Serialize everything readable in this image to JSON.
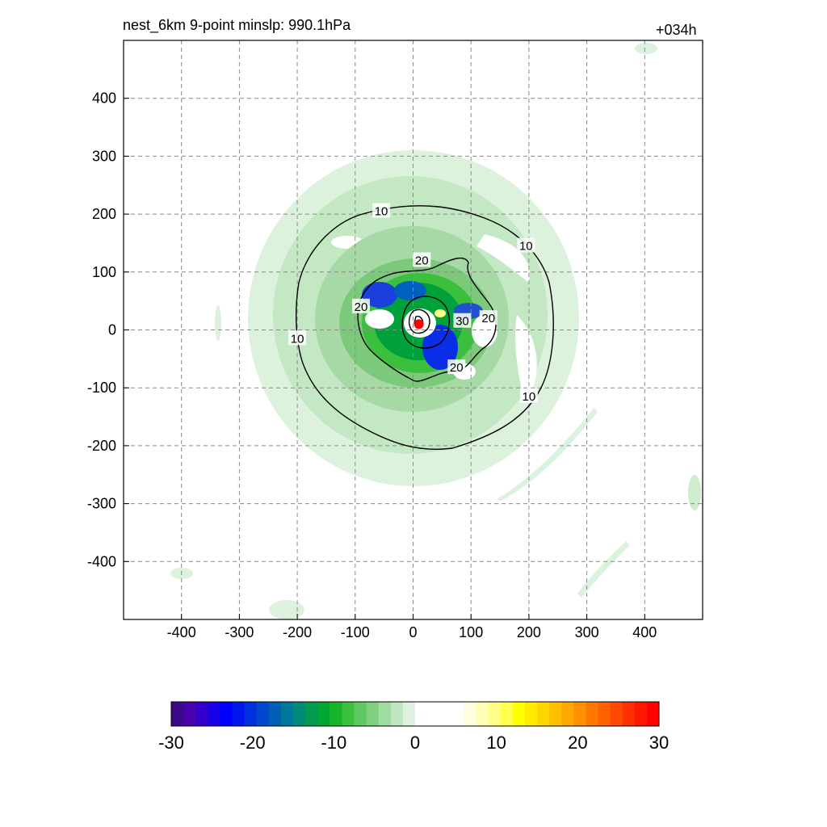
{
  "header": {
    "left": "nest_6km  9-point minslp: 990.1hPa",
    "right": "+034h"
  },
  "chart_data": {
    "type": "heatmap",
    "title": "nest_6km  9-point minslp: 990.1hPa",
    "time_label": "+034h",
    "xlim": [
      -500,
      500
    ],
    "ylim": [
      -500,
      500
    ],
    "x_ticks": [
      -400,
      -300,
      -200,
      -100,
      0,
      100,
      200,
      300,
      400
    ],
    "y_ticks": [
      400,
      300,
      200,
      100,
      0,
      -100,
      -200,
      -300,
      -400
    ],
    "grid": true,
    "center": {
      "x": 10,
      "y": 10,
      "color": "#ff0000"
    },
    "contour_labels": [
      {
        "text": "10",
        "x": -55,
        "y": 205
      },
      {
        "text": "10",
        "x": 195,
        "y": 145
      },
      {
        "text": "10",
        "x": -200,
        "y": -15
      },
      {
        "text": "10",
        "x": 200,
        "y": -115
      },
      {
        "text": "20",
        "x": 15,
        "y": 120
      },
      {
        "text": "20",
        "x": -90,
        "y": 40
      },
      {
        "text": "20",
        "x": 130,
        "y": 20
      },
      {
        "text": "20",
        "x": 75,
        "y": -65
      },
      {
        "text": "30",
        "x": 85,
        "y": 15
      }
    ],
    "colorbar": {
      "ticks": [
        -30,
        -20,
        -10,
        0,
        10,
        20,
        30
      ],
      "range": [
        -30,
        30
      ],
      "colors": [
        "#3b0a8a",
        "#4a00aa",
        "#3300cc",
        "#1a00e6",
        "#0000ff",
        "#0018ee",
        "#0030dd",
        "#0048cc",
        "#005fb5",
        "#00779a",
        "#008a78",
        "#009a50",
        "#00a833",
        "#18b428",
        "#3cbf3c",
        "#60c860",
        "#80d080",
        "#a0dba0",
        "#bfe6bf",
        "#dff2df",
        "#ffffff",
        "#ffffff",
        "#ffffff",
        "#ffffff",
        "#ffffe0",
        "#ffffb8",
        "#ffff88",
        "#ffff50",
        "#ffff00",
        "#ffea00",
        "#ffd500",
        "#ffc000",
        "#ffa800",
        "#ff9000",
        "#ff7800",
        "#ff6000",
        "#ff4800",
        "#ff3000",
        "#ff1800",
        "#ff0000"
      ]
    }
  }
}
